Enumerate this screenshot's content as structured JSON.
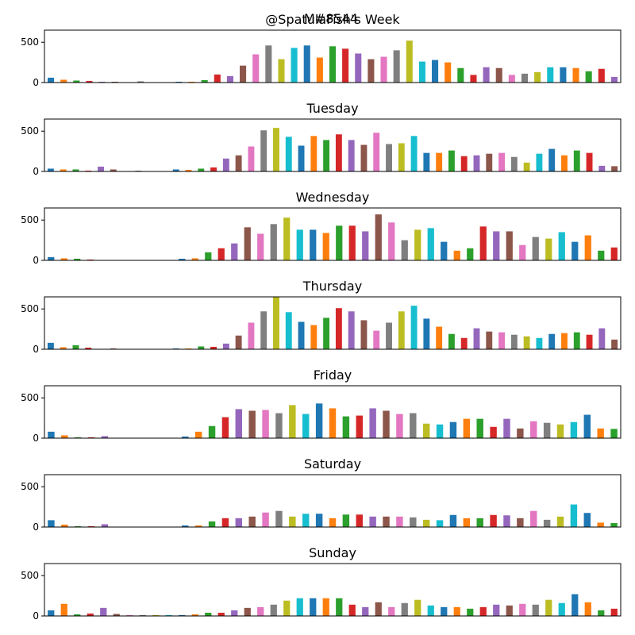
{
  "overlay_title": "M#8544",
  "chart_data": [
    {
      "type": "bar",
      "title": "@SpatulaFish's Week",
      "ylim": [
        0,
        650
      ],
      "yticks": [
        0,
        500
      ],
      "values": [
        60,
        35,
        25,
        20,
        10,
        10,
        0,
        15,
        0,
        0,
        10,
        10,
        30,
        100,
        80,
        210,
        350,
        460,
        290,
        430,
        460,
        310,
        450,
        420,
        360,
        290,
        320,
        400,
        520,
        260,
        280,
        250,
        180,
        95,
        190,
        180,
        95,
        110,
        130,
        190,
        190,
        180,
        140,
        170,
        70
      ],
      "colors": [
        "#1f77b4",
        "#ff7f0e",
        "#2ca02c",
        "#d62728",
        "#9467bd",
        "#8c564b",
        "#e377c2",
        "#7f7f7f",
        "#bcbd22",
        "#17becf"
      ]
    },
    {
      "type": "bar",
      "title": "Tuesday",
      "ylim": [
        0,
        650
      ],
      "yticks": [
        0,
        500
      ],
      "values": [
        35,
        25,
        25,
        10,
        60,
        25,
        0,
        10,
        0,
        0,
        25,
        20,
        35,
        50,
        160,
        200,
        310,
        510,
        540,
        430,
        320,
        440,
        390,
        460,
        390,
        330,
        480,
        340,
        350,
        440,
        230,
        230,
        260,
        190,
        200,
        220,
        230,
        180,
        110,
        220,
        280,
        200,
        260,
        230,
        70,
        65
      ],
      "colors": [
        "#1f77b4",
        "#ff7f0e",
        "#2ca02c",
        "#d62728",
        "#9467bd",
        "#8c564b",
        "#e377c2",
        "#7f7f7f",
        "#bcbd22",
        "#17becf"
      ]
    },
    {
      "type": "bar",
      "title": "Wednesday",
      "ylim": [
        0,
        650
      ],
      "yticks": [
        0,
        500
      ],
      "values": [
        40,
        25,
        20,
        10,
        0,
        0,
        0,
        0,
        0,
        0,
        20,
        25,
        100,
        150,
        210,
        410,
        330,
        450,
        530,
        380,
        380,
        340,
        430,
        430,
        360,
        570,
        470,
        250,
        380,
        400,
        230,
        120,
        150,
        420,
        360,
        360,
        190,
        290,
        270,
        350,
        230,
        310,
        120,
        160
      ],
      "colors": [
        "#1f77b4",
        "#ff7f0e",
        "#2ca02c",
        "#d62728",
        "#9467bd",
        "#8c564b",
        "#e377c2",
        "#7f7f7f",
        "#bcbd22",
        "#17becf"
      ]
    },
    {
      "type": "bar",
      "title": "Thursday",
      "ylim": [
        0,
        650
      ],
      "yticks": [
        0,
        500
      ],
      "values": [
        80,
        25,
        50,
        20,
        0,
        10,
        0,
        0,
        0,
        0,
        10,
        10,
        35,
        30,
        70,
        170,
        330,
        470,
        650,
        460,
        340,
        300,
        390,
        510,
        470,
        360,
        230,
        330,
        470,
        540,
        380,
        280,
        190,
        140,
        260,
        220,
        210,
        180,
        160,
        140,
        190,
        200,
        210,
        180,
        260,
        120
      ],
      "colors": [
        "#1f77b4",
        "#ff7f0e",
        "#2ca02c",
        "#d62728",
        "#9467bd",
        "#8c564b",
        "#e377c2",
        "#7f7f7f",
        "#bcbd22",
        "#17becf"
      ]
    },
    {
      "type": "bar",
      "title": "Friday",
      "ylim": [
        0,
        650
      ],
      "yticks": [
        0,
        500
      ],
      "values": [
        80,
        35,
        10,
        10,
        25,
        0,
        0,
        0,
        0,
        0,
        20,
        80,
        150,
        260,
        360,
        340,
        350,
        310,
        410,
        300,
        430,
        370,
        270,
        280,
        370,
        340,
        300,
        310,
        180,
        170,
        200,
        240,
        240,
        140,
        240,
        120,
        210,
        190,
        170,
        200,
        290,
        120,
        115
      ],
      "colors": [
        "#1f77b4",
        "#ff7f0e",
        "#2ca02c",
        "#d62728",
        "#9467bd",
        "#8c564b",
        "#e377c2",
        "#7f7f7f",
        "#bcbd22",
        "#17becf"
      ]
    },
    {
      "type": "bar",
      "title": "Saturday",
      "ylim": [
        0,
        650
      ],
      "yticks": [
        0,
        500
      ],
      "values": [
        85,
        30,
        10,
        10,
        35,
        0,
        0,
        0,
        0,
        0,
        20,
        20,
        70,
        110,
        110,
        130,
        180,
        200,
        130,
        165,
        165,
        110,
        155,
        155,
        130,
        130,
        130,
        120,
        90,
        85,
        150,
        110,
        110,
        150,
        145,
        110,
        200,
        90,
        130,
        280,
        175,
        55,
        50
      ],
      "colors": [
        "#1f77b4",
        "#ff7f0e",
        "#2ca02c",
        "#d62728",
        "#9467bd",
        "#8c564b",
        "#e377c2",
        "#7f7f7f",
        "#bcbd22",
        "#17becf"
      ]
    },
    {
      "type": "bar",
      "title": "Sunday",
      "ylim": [
        0,
        650
      ],
      "yticks": [
        0,
        500
      ],
      "values": [
        70,
        150,
        20,
        30,
        100,
        25,
        10,
        10,
        10,
        10,
        10,
        20,
        40,
        40,
        70,
        100,
        110,
        140,
        190,
        220,
        220,
        220,
        220,
        140,
        110,
        170,
        110,
        160,
        200,
        130,
        110,
        110,
        90,
        110,
        140,
        130,
        150,
        140,
        200,
        160,
        270,
        170,
        70,
        90
      ],
      "colors": [
        "#1f77b4",
        "#ff7f0e",
        "#2ca02c",
        "#d62728",
        "#9467bd",
        "#8c564b",
        "#e377c2",
        "#7f7f7f",
        "#bcbd22",
        "#17becf"
      ]
    }
  ]
}
